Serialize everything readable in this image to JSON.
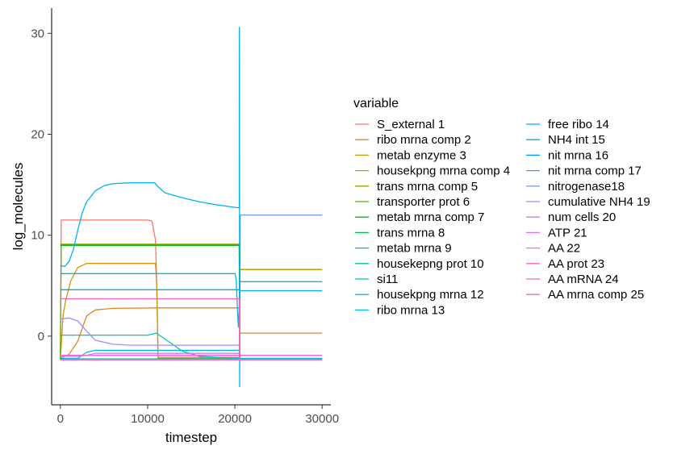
{
  "chart_data": {
    "type": "line",
    "title": "",
    "xlabel": "timestep",
    "ylabel": "log_molecules",
    "xlim": [
      -1000,
      31000
    ],
    "ylim": [
      -6.8,
      32.5
    ],
    "x_ticks": [
      0,
      10000,
      20000,
      30000
    ],
    "x_tick_labels": [
      "0",
      "10000",
      "20000",
      "30000"
    ],
    "y_ticks": [
      0,
      10,
      20,
      30
    ],
    "y_tick_labels": [
      "0",
      "10",
      "20",
      "30"
    ],
    "grid": false,
    "legend": {
      "title": "variable",
      "placement": "right",
      "columns": 2
    },
    "series": [
      {
        "name": "S_external 1",
        "color": "#F8766D",
        "points": [
          [
            0,
            -2.3
          ],
          [
            100,
            11.5
          ],
          [
            10000,
            11.5
          ],
          [
            10500,
            11.4
          ],
          [
            10900,
            9.5
          ],
          [
            11050,
            5
          ],
          [
            11200,
            -2.1
          ],
          [
            20500,
            -2.1
          ],
          [
            21000,
            -2.3
          ],
          [
            30000,
            -2.3
          ]
        ]
      },
      {
        "name": "ribo mrna comp 2",
        "color": "#E7851E",
        "points": [
          [
            0,
            -2.2
          ],
          [
            1000,
            -1.8
          ],
          [
            2000,
            -0.5
          ],
          [
            3000,
            2
          ],
          [
            4000,
            2.6
          ],
          [
            6000,
            2.75
          ],
          [
            11200,
            2.8
          ],
          [
            20500,
            2.8
          ],
          [
            20550,
            0.3
          ],
          [
            30000,
            0.3
          ]
        ]
      },
      {
        "name": "metab enzyme 3",
        "color": "#D09400",
        "points": [
          [
            0,
            -2.3
          ],
          [
            300,
            2
          ],
          [
            600,
            3.5
          ],
          [
            1200,
            5.5
          ],
          [
            2000,
            6.8
          ],
          [
            3000,
            7.2
          ],
          [
            10900,
            7.2
          ],
          [
            11050,
            5
          ],
          [
            11200,
            -2.2
          ],
          [
            20500,
            -2.2
          ],
          [
            20550,
            6.6
          ],
          [
            30000,
            6.6
          ]
        ]
      },
      {
        "name": "housekpng mrna comp 4",
        "color": "#B2A100",
        "points": [
          [
            0,
            9.1
          ],
          [
            20500,
            9.1
          ],
          [
            20550,
            6.6
          ],
          [
            30000,
            6.6
          ]
        ]
      },
      {
        "name": "trans mrna comp 5",
        "color": "#8BAB00",
        "points": [
          [
            0,
            9.1
          ],
          [
            20500,
            9.1
          ],
          [
            20550,
            -2.3
          ],
          [
            30000,
            -2.3
          ]
        ]
      },
      {
        "name": "transporter prot 6",
        "color": "#5BB300",
        "points": [
          [
            0,
            -2.3
          ],
          [
            100,
            9.0
          ],
          [
            20500,
            9.0
          ],
          [
            20550,
            -2.3
          ],
          [
            30000,
            -2.3
          ]
        ]
      },
      {
        "name": "metab mrna comp 7",
        "color": "#00B81F",
        "points": [
          [
            0,
            9.0
          ],
          [
            20500,
            9.0
          ],
          [
            20550,
            -2.3
          ],
          [
            30000,
            -2.3
          ]
        ]
      },
      {
        "name": "trans mrna 8",
        "color": "#00BC59",
        "points": [
          [
            0,
            -2.3
          ],
          [
            30000,
            -2.3
          ]
        ]
      },
      {
        "name": "metab mrna 9",
        "color": "#00BF7D",
        "points": [
          [
            0,
            -2.3
          ],
          [
            30000,
            -2.3
          ]
        ]
      },
      {
        "name": "housekepng prot 10",
        "color": "#00C19F",
        "points": [
          [
            0,
            -2.25
          ],
          [
            30000,
            -2.25
          ]
        ]
      },
      {
        "name": "si11",
        "color": "#00C1BC",
        "points": [
          [
            0,
            0.1
          ],
          [
            10000,
            0.1
          ],
          [
            11000,
            0.3
          ],
          [
            12000,
            -0.3
          ],
          [
            14000,
            -1.5
          ],
          [
            16000,
            -2.0
          ],
          [
            20500,
            -2.2
          ],
          [
            21000,
            -2.2
          ],
          [
            30000,
            -2.2
          ]
        ]
      },
      {
        "name": "housekpng mrna 12",
        "color": "#00BDD6",
        "points": [
          [
            0,
            -2.2
          ],
          [
            2000,
            -2.2
          ],
          [
            3000,
            -1.6
          ],
          [
            4000,
            -1.4
          ],
          [
            20500,
            -1.4
          ],
          [
            20550,
            -2.3
          ],
          [
            30000,
            -2.3
          ]
        ]
      },
      {
        "name": "ribo mrna 13",
        "color": "#00B7EB",
        "points": [
          [
            0,
            6.2
          ],
          [
            20000,
            6.2
          ],
          [
            20150,
            5.6
          ],
          [
            20300,
            2.5
          ],
          [
            20400,
            0.9
          ],
          [
            20500,
            3
          ],
          [
            20550,
            5.4
          ],
          [
            30000,
            5.4
          ]
        ]
      },
      {
        "name": "free ribo 14",
        "color": "#00B1F3",
        "points": [
          [
            0,
            7.0
          ],
          [
            500,
            6.9
          ],
          [
            1000,
            7.4
          ],
          [
            1500,
            8.6
          ],
          [
            2000,
            10.5
          ],
          [
            2500,
            12.2
          ],
          [
            3000,
            13.3
          ],
          [
            4000,
            14.4
          ],
          [
            5000,
            14.9
          ],
          [
            6000,
            15.1
          ],
          [
            8000,
            15.2
          ],
          [
            10800,
            15.2
          ],
          [
            11200,
            14.8
          ],
          [
            12000,
            14.2
          ],
          [
            14000,
            13.7
          ],
          [
            16000,
            13.3
          ],
          [
            18000,
            13.0
          ],
          [
            20500,
            12.7
          ],
          [
            20520,
            30.6
          ],
          [
            20550,
            -5
          ],
          [
            20600,
            12.0
          ],
          [
            30000,
            12.0
          ]
        ]
      },
      {
        "name": "NH4 int 15",
        "color": "#00A8FF",
        "points": [
          [
            0,
            4.6
          ],
          [
            20500,
            4.6
          ],
          [
            20550,
            4.5
          ],
          [
            30000,
            4.5
          ]
        ]
      },
      {
        "name": "nit mrna 16",
        "color": "#0099FF",
        "points": [
          [
            0,
            -2.3
          ],
          [
            20500,
            -2.3
          ],
          [
            20550,
            -2.3
          ],
          [
            30000,
            -2.3
          ]
        ]
      },
      {
        "name": "nit mrna comp 17",
        "color": "#4D8FFF",
        "points": [
          [
            0,
            -2.3
          ],
          [
            30000,
            -2.3
          ]
        ]
      },
      {
        "name": "nitrogenase18",
        "color": "#80A0E8",
        "points": [
          [
            20550,
            12.0
          ],
          [
            30000,
            12.0
          ]
        ]
      },
      {
        "name": "cumulative NH4 19",
        "color": "#A58AFF",
        "points": [
          [
            0,
            1.7
          ],
          [
            1000,
            1.8
          ],
          [
            2000,
            1.5
          ],
          [
            3000,
            0.5
          ],
          [
            4000,
            -0.4
          ],
          [
            6000,
            -0.8
          ],
          [
            8000,
            -0.9
          ],
          [
            20500,
            -0.9
          ]
        ]
      },
      {
        "name": "num cells 20",
        "color": "#C77CFF",
        "points": [
          [
            0,
            -2.0
          ],
          [
            2000,
            -2.0
          ],
          [
            3000,
            -1.9
          ],
          [
            4000,
            -1.7
          ],
          [
            20500,
            -1.7
          ],
          [
            20550,
            -2.3
          ],
          [
            30000,
            -2.3
          ]
        ]
      },
      {
        "name": "ATP 21",
        "color": "#DF70F8",
        "points": [
          [
            0,
            -2.35
          ],
          [
            30000,
            -2.35
          ]
        ]
      },
      {
        "name": "AA 22",
        "color": "#F166E8",
        "points": [
          [
            0,
            -2.3
          ],
          [
            30000,
            -2.3
          ]
        ]
      },
      {
        "name": "AA prot 23",
        "color": "#FB61D7",
        "points": [
          [
            0,
            -1.9
          ],
          [
            30000,
            -1.9
          ]
        ]
      },
      {
        "name": "AA mRNA 24",
        "color": "#FF62BC",
        "points": [
          [
            0,
            3.7
          ],
          [
            20500,
            3.7
          ],
          [
            20550,
            -2.3
          ],
          [
            30000,
            -2.3
          ]
        ]
      },
      {
        "name": "AA mrna comp 25",
        "color": "#FF6C91",
        "points": [
          [
            0,
            -2.3
          ],
          [
            30000,
            -2.3
          ]
        ]
      }
    ]
  }
}
